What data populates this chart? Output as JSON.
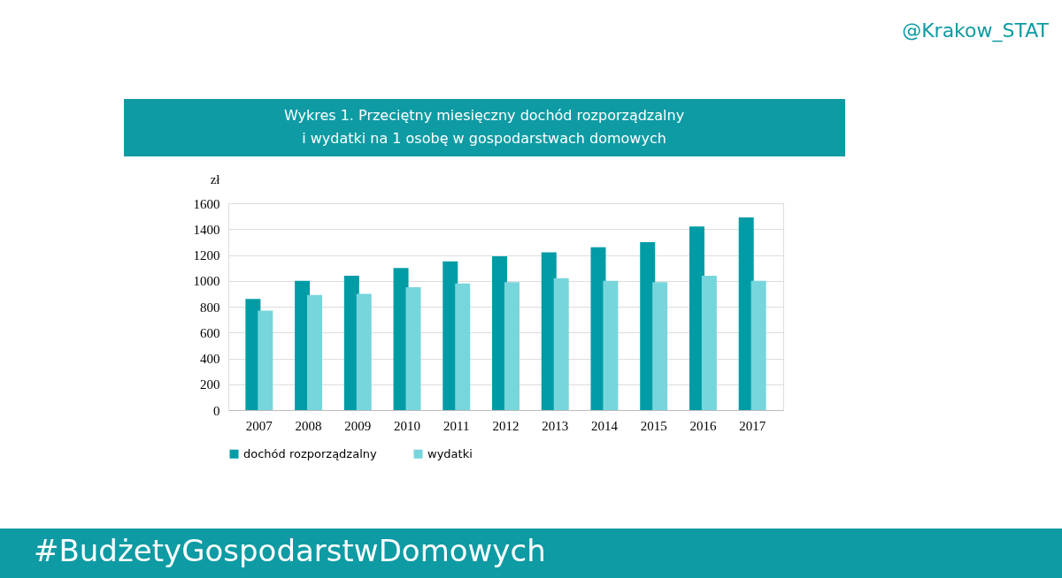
{
  "chart_data": {
    "type": "bar",
    "title": [
      "Wykres 1. Przeciętny miesięczny dochód rozporządzalny",
      "i wydatki na 1 osobę w gospodarstwach domowych"
    ],
    "ylabel": "zł",
    "categories": [
      "2007",
      "2008",
      "2009",
      "2010",
      "2011",
      "2012",
      "2013",
      "2014",
      "2015",
      "2016",
      "2017"
    ],
    "series": [
      {
        "name": "dochód rozporządzalny",
        "color": "#009ca6",
        "values": [
          860,
          1000,
          1040,
          1100,
          1150,
          1190,
          1220,
          1260,
          1300,
          1420,
          1490
        ]
      },
      {
        "name": "wydatki",
        "color": "#76d6dc",
        "values": [
          770,
          890,
          900,
          950,
          980,
          990,
          1020,
          1000,
          990,
          1040,
          1000
        ]
      }
    ],
    "ylim": [
      0,
      1600
    ],
    "yticks": [
      0,
      200,
      400,
      600,
      800,
      1000,
      1200,
      1400,
      1600
    ],
    "grid": "y",
    "legend": "bottom",
    "annotations": [
      "@Krakow_STAT",
      "#BudżetyGospodarstwDomowych"
    ]
  }
}
